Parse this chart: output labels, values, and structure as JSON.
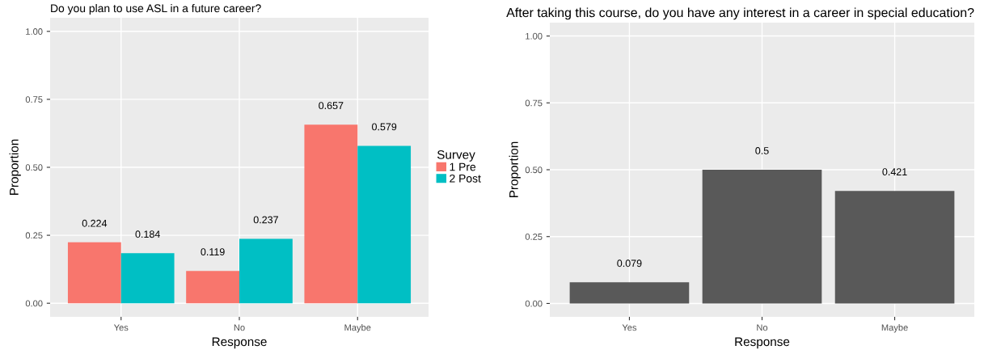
{
  "chart_data": [
    {
      "type": "bar",
      "title": "Do you plan to use ASL in a future career?",
      "xlabel": "Response",
      "ylabel": "Proportion",
      "categories": [
        "Yes",
        "No",
        "Maybe"
      ],
      "series": [
        {
          "name": "1 Pre",
          "color": "#f8766d",
          "values": [
            0.224,
            0.119,
            0.657
          ]
        },
        {
          "name": "2 Post",
          "color": "#00bfc4",
          "values": [
            0.184,
            0.237,
            0.579
          ]
        }
      ],
      "legend_title": "Survey",
      "legend": "right",
      "data_labels": true,
      "grid": true,
      "ylim": [
        -0.05,
        1.05
      ],
      "yticks": [
        {
          "value": 0,
          "label": "0.00"
        },
        {
          "value": 0.25,
          "label": "0.25"
        },
        {
          "value": 0.5,
          "label": "0.50"
        },
        {
          "value": 0.75,
          "label": "0.75"
        },
        {
          "value": 1,
          "label": "1.00"
        }
      ]
    },
    {
      "type": "bar",
      "title": "After taking this course, do you have any interest in a career in special education?",
      "xlabel": "Response",
      "ylabel": "Proportion",
      "categories": [
        "Yes",
        "No",
        "Maybe"
      ],
      "series": [
        {
          "color": "#595959",
          "values": [
            0.079,
            0.5,
            0.421
          ]
        }
      ],
      "data_labels": true,
      "grid": true,
      "ylim": [
        -0.05,
        1.05
      ],
      "yticks": [
        {
          "value": 0,
          "label": "0.00"
        },
        {
          "value": 0.25,
          "label": "0.25"
        },
        {
          "value": 0.5,
          "label": "0.50"
        },
        {
          "value": 0.75,
          "label": "0.75"
        },
        {
          "value": 1,
          "label": "1.00"
        }
      ]
    }
  ]
}
